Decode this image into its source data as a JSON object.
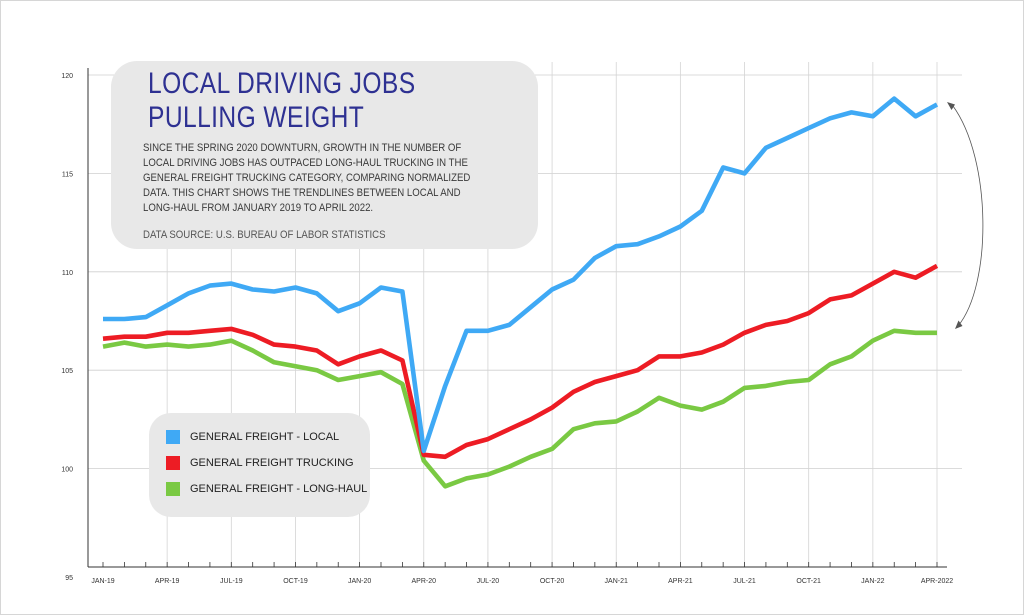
{
  "chart_data": {
    "type": "line",
    "title": "LOCAL DRIVING JOBS PULLING WEIGHT",
    "title_lines": [
      "LOCAL DRIVING JOBS",
      "PULLING WEIGHT"
    ],
    "subtitle": "SINCE THE SPRING 2020 DOWNTURN, GROWTH IN THE NUMBER OF LOCAL DRIVING JOBS HAS OUTPACED LONG-HAUL TRUCKING IN THE GENERAL FREIGHT TRUCKING CATEGORY, COMPARING NORMALIZED DATA. THIS CHART SHOWS THE TRENDLINES BETWEEN LOCAL AND LONG-HAUL FROM JANUARY 2019 TO APRIL 2022.",
    "source": "DATA SOURCE: U.S. BUREAU OF LABOR STATISTICS",
    "xlabel": "",
    "ylabel": "",
    "ylim": [
      95,
      121
    ],
    "yticks": [
      95,
      100,
      105,
      110,
      115,
      120
    ],
    "grid": true,
    "legend_position": "bottom-left",
    "x_tick_labels": [
      "JAN-19",
      "APR-19",
      "JUL-19",
      "OCT-19",
      "JAN-20",
      "APR-20",
      "JUL-20",
      "OCT-20",
      "JAN-21",
      "APR-21",
      "JUL-21",
      "OCT-21",
      "JAN-22",
      "APR-2022"
    ],
    "x_tick_months": [
      0,
      3,
      6,
      9,
      12,
      15,
      18,
      21,
      24,
      27,
      30,
      33,
      36,
      39
    ],
    "x_months": [
      "Jan-19",
      "Feb-19",
      "Mar-19",
      "Apr-19",
      "May-19",
      "Jun-19",
      "Jul-19",
      "Aug-19",
      "Sep-19",
      "Oct-19",
      "Nov-19",
      "Dec-19",
      "Jan-20",
      "Feb-20",
      "Mar-20",
      "Apr-20",
      "May-20",
      "Jun-20",
      "Jul-20",
      "Aug-20",
      "Sep-20",
      "Oct-20",
      "Nov-20",
      "Dec-20",
      "Jan-21",
      "Feb-21",
      "Mar-21",
      "Apr-21",
      "May-21",
      "Jun-21",
      "Jul-21",
      "Aug-21",
      "Sep-21",
      "Oct-21",
      "Nov-21",
      "Dec-21",
      "Jan-22",
      "Feb-22",
      "Mar-22",
      "Apr-2022"
    ],
    "series": [
      {
        "name": "GENERAL FREIGHT - LOCAL",
        "color": "#3fa9f5",
        "values": [
          107.6,
          107.6,
          107.7,
          108.3,
          108.9,
          109.3,
          109.4,
          109.1,
          109.0,
          109.2,
          108.9,
          108.0,
          108.4,
          109.2,
          109.0,
          100.9,
          104.2,
          107.0,
          107.0,
          107.3,
          108.2,
          109.1,
          109.6,
          110.7,
          111.3,
          111.4,
          111.8,
          112.3,
          113.1,
          115.3,
          115.0,
          116.3,
          116.8,
          117.3,
          117.8,
          118.1,
          117.9,
          118.8,
          117.9,
          118.5
        ]
      },
      {
        "name": "GENERAL FREIGHT TRUCKING",
        "color": "#ed1c24",
        "values": [
          106.6,
          106.7,
          106.7,
          106.9,
          106.9,
          107.0,
          107.1,
          106.8,
          106.3,
          106.2,
          106.0,
          105.3,
          105.7,
          106.0,
          105.5,
          100.7,
          100.6,
          101.2,
          101.5,
          102.0,
          102.5,
          103.1,
          103.9,
          104.4,
          104.7,
          105.0,
          105.7,
          105.7,
          105.9,
          106.3,
          106.9,
          107.3,
          107.5,
          107.9,
          108.6,
          108.8,
          109.4,
          110.0,
          109.7,
          110.3
        ]
      },
      {
        "name": "GENERAL FREIGHT - LONG-HAUL",
        "color": "#7ac943",
        "values": [
          106.2,
          106.4,
          106.2,
          106.3,
          106.2,
          106.3,
          106.5,
          106.0,
          105.4,
          105.2,
          105.0,
          104.5,
          104.7,
          104.9,
          104.3,
          100.4,
          99.1,
          99.5,
          99.7,
          100.1,
          100.6,
          101.0,
          102.0,
          102.3,
          102.4,
          102.9,
          103.6,
          103.2,
          103.0,
          103.4,
          104.1,
          104.2,
          104.4,
          104.5,
          105.3,
          105.7,
          106.5,
          107.0,
          106.9,
          106.9
        ]
      }
    ]
  }
}
